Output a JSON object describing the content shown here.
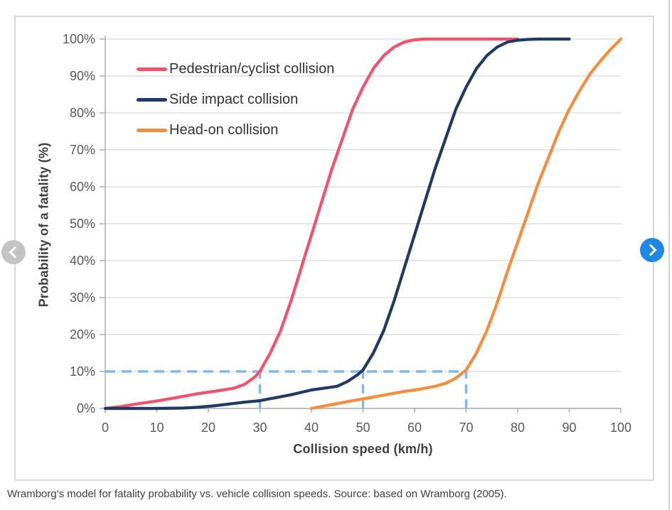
{
  "page": {
    "caption": "Wramborg's model for fatality probability vs. vehicle collision speeds. Source: based on Wramborg (2005)."
  },
  "carousel": {
    "prev_button_color": "#c4c4c4",
    "next_button_color": "#1e88e5"
  },
  "chart_data": {
    "type": "line",
    "title": "",
    "xlabel": "Collision speed (km/h)",
    "ylabel": "Probability of a fatality (%)",
    "xlim": [
      0,
      100
    ],
    "ylim": [
      0,
      100
    ],
    "grid": true,
    "legend_position": "inside-top-left",
    "x_ticks": [
      "0",
      "10",
      "20",
      "30",
      "40",
      "50",
      "60",
      "70",
      "80",
      "90",
      "100"
    ],
    "y_ticks": [
      "0%",
      "10%",
      "20%",
      "30%",
      "40%",
      "50%",
      "60%",
      "70%",
      "80%",
      "90%",
      "100%"
    ],
    "grid_color": "#dadada",
    "axis_color": "#a9a9a9",
    "series": [
      {
        "name": "Pedestrian/cyclist collision",
        "color": "#f4516c",
        "points": [
          [
            0,
            0
          ],
          [
            3,
            0.5
          ],
          [
            6,
            1.2
          ],
          [
            10,
            2
          ],
          [
            14,
            3
          ],
          [
            18,
            4
          ],
          [
            22,
            4.8
          ],
          [
            25,
            5.5
          ],
          [
            27,
            6.5
          ],
          [
            29,
            8.5
          ],
          [
            30,
            10
          ],
          [
            32,
            15
          ],
          [
            34,
            21
          ],
          [
            36,
            29
          ],
          [
            38,
            38
          ],
          [
            40,
            47
          ],
          [
            42,
            56
          ],
          [
            44,
            65
          ],
          [
            46,
            73
          ],
          [
            48,
            81
          ],
          [
            50,
            87
          ],
          [
            52,
            92
          ],
          [
            54,
            95.5
          ],
          [
            56,
            97.8
          ],
          [
            58,
            99.2
          ],
          [
            60,
            99.8
          ],
          [
            62,
            100
          ],
          [
            66,
            100
          ],
          [
            70,
            100
          ],
          [
            75,
            100
          ],
          [
            80,
            100
          ]
        ]
      },
      {
        "name": "Side impact collision",
        "color": "#203a66",
        "points": [
          [
            0,
            0
          ],
          [
            5,
            0
          ],
          [
            10,
            0
          ],
          [
            15,
            0.1
          ],
          [
            18,
            0.3
          ],
          [
            21,
            0.7
          ],
          [
            24,
            1.2
          ],
          [
            27,
            1.7
          ],
          [
            30,
            2.1
          ],
          [
            33,
            2.9
          ],
          [
            36,
            3.7
          ],
          [
            40,
            5
          ],
          [
            43,
            5.6
          ],
          [
            45,
            6
          ],
          [
            47,
            7.3
          ],
          [
            49,
            9.2
          ],
          [
            50,
            10.4
          ],
          [
            52,
            15
          ],
          [
            54,
            21
          ],
          [
            56,
            29
          ],
          [
            58,
            38
          ],
          [
            60,
            47
          ],
          [
            62,
            56
          ],
          [
            64,
            65
          ],
          [
            66,
            73
          ],
          [
            68,
            81
          ],
          [
            70,
            87
          ],
          [
            72,
            92
          ],
          [
            74,
            95.5
          ],
          [
            76,
            97.8
          ],
          [
            78,
            99.2
          ],
          [
            80,
            99.7
          ],
          [
            82,
            99.9
          ],
          [
            84,
            100
          ],
          [
            87,
            100
          ],
          [
            90,
            100
          ]
        ]
      },
      {
        "name": "Head-on collision",
        "color": "#f68c3e",
        "points": [
          [
            40,
            0
          ],
          [
            43,
            0.8
          ],
          [
            46,
            1.6
          ],
          [
            50,
            2.6
          ],
          [
            54,
            3.6
          ],
          [
            58,
            4.6
          ],
          [
            61,
            5.2
          ],
          [
            64,
            6
          ],
          [
            66,
            6.8
          ],
          [
            68,
            8.2
          ],
          [
            70,
            10.4
          ],
          [
            72,
            15
          ],
          [
            74,
            21
          ],
          [
            76,
            28.5
          ],
          [
            78,
            37
          ],
          [
            80,
            45
          ],
          [
            82,
            53
          ],
          [
            84,
            61
          ],
          [
            86,
            68
          ],
          [
            88,
            75
          ],
          [
            90,
            81
          ],
          [
            92,
            86
          ],
          [
            94,
            90.5
          ],
          [
            96,
            94
          ],
          [
            98,
            97.2
          ],
          [
            100,
            100
          ]
        ]
      }
    ],
    "guides": {
      "color": "#7db9f0",
      "horizontal": {
        "y": 10,
        "x_start": 0,
        "x_end": 70
      },
      "verticals": [
        {
          "x": 30,
          "y_bottom": 0,
          "y_top": 10
        },
        {
          "x": 50,
          "y_bottom": 0,
          "y_top": 10
        },
        {
          "x": 70,
          "y_bottom": 0,
          "y_top": 10
        }
      ]
    }
  }
}
